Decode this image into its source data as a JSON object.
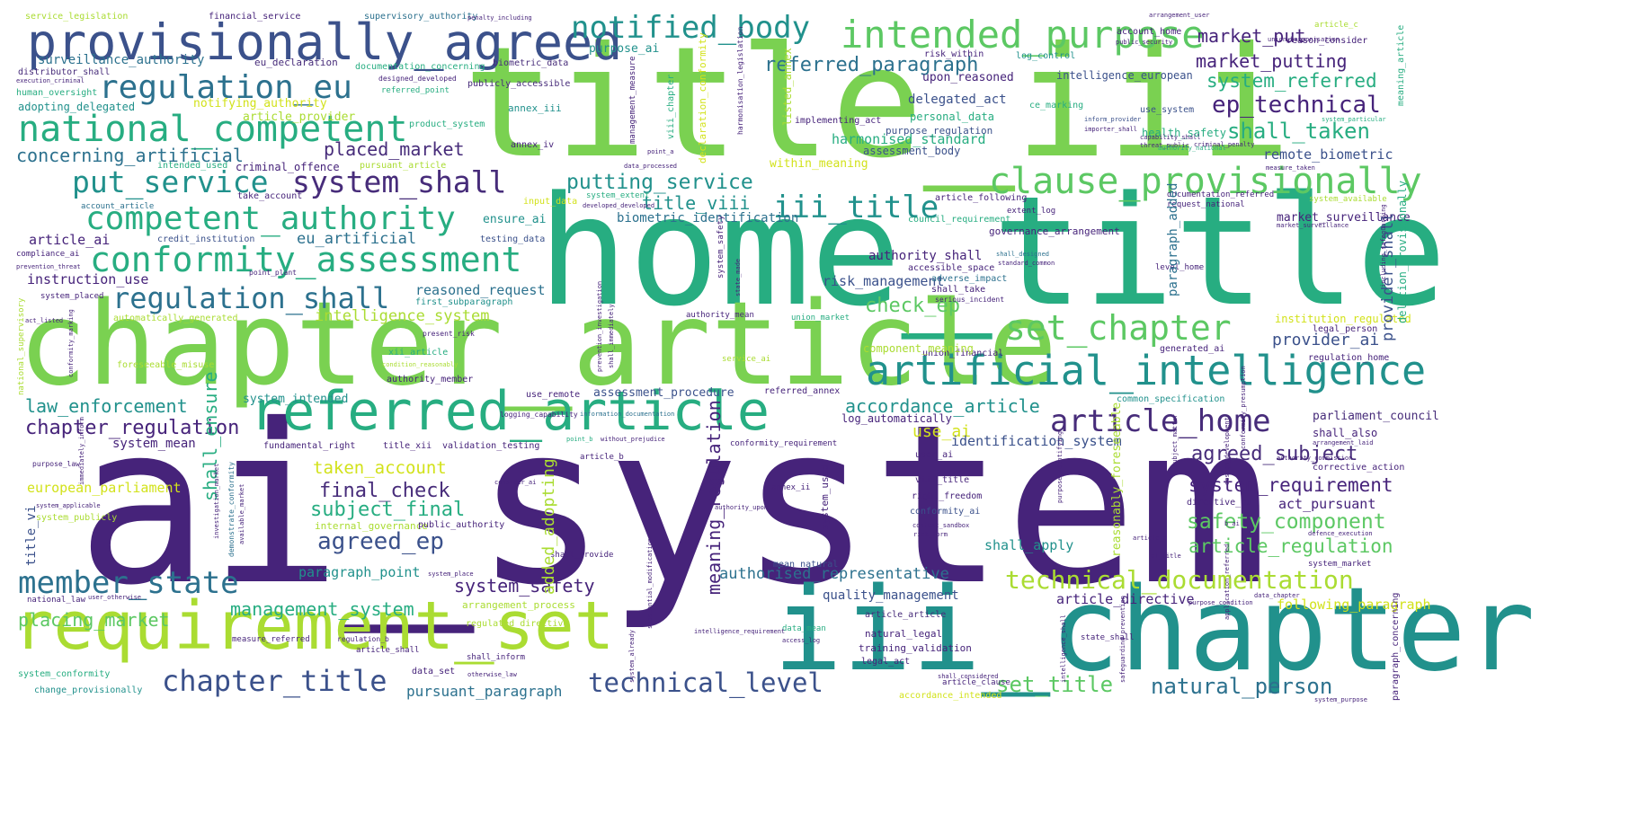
{
  "words": {
    "ai_system": "ai_system",
    "home_title": "home_title",
    "title_iii": "title_iii",
    "chapter_article": "chapter_article",
    "iii_chapter": "iii_chapter",
    "requirement_set": "requirement_set",
    "referred_article": "referred_article",
    "provisionally_agreed": "provisionally_agreed",
    "artificial_intelligence": "artificial_intelligence",
    "intended_purpose": "intended_purpose",
    "national_competent": "national_competent",
    "clause_provisionally": "clause_provisionally",
    "conformity_assessment": "conformity_assessment",
    "competent_authority": "competent_authority",
    "regulation_eu": "regulation_eu",
    "notified_body": "notified_body",
    "system_shall": "system_shall",
    "put_service": "put_service",
    "regulation_shall": "regulation_shall",
    "iii_title": "iii_title",
    "set_chapter": "set_chapter",
    "article_home": "article_home",
    "member_state": "member_state",
    "chapter_title": "chapter_title",
    "technical_documentation": "technical_documentation",
    "technical_level": "technical_level",
    "ep_technical": "ep_technical",
    "market_put": "market_put",
    "market_putting": "market_putting",
    "system_referred": "system_referred",
    "shall_taken": "shall_taken",
    "referred_paragraph": "referred_paragraph",
    "putting_service": "putting_service",
    "title_viii": "title_viii",
    "placed_market": "placed_market",
    "concerning_artificial": "concerning_artificial",
    "agreed_ep": "agreed_ep",
    "final_check": "final_check",
    "subject_final": "subject_final",
    "system_requirement": "system_requirement",
    "safety_component": "safety_component",
    "agreed_subject": "agreed_subject",
    "article_regulation": "article_regulation",
    "natural_person": "natural_person",
    "set_title": "set_title",
    "chapter_regulation": "chapter_regulation",
    "law_enforcement": "law_enforcement",
    "placing_market": "placing_market",
    "management_system": "management_system",
    "system_safety": "system_safety",
    "accordance_article": "accordance_article",
    "check_ep": "check_ep",
    "intelligence_system": "intelligence_system",
    "authorised_representative": "authorised_representative",
    "pursuant_paragraph": "pursuant_paragraph",
    "taken_account": "taken_account",
    "eu_artificial": "eu_artificial",
    "article_ai": "article_ai",
    "harmonised_standard": "harmonised_standard",
    "risk_management": "risk_management",
    "provider_ai": "provider_ai",
    "meaning_regulation": "meaning_regulation",
    "biometric_identification": "biometric_identification",
    "use_ai": "use_ai",
    "identification_system": "identification_system",
    "paragraph_point": "paragraph_point",
    "surveillance_authority": "surveillance_authority",
    "reasoned_request": "reasoned_request",
    "instruction_use": "instruction_use",
    "authority_shall": "authority_shall",
    "delegated_act": "delegated_act",
    "remote_biometric": "remote_biometric",
    "market_surveillance": "market_surveillance",
    "shall_apply": "shall_apply",
    "act_pursuant": "act_pursuant",
    "following_paragraph": "following_paragraph",
    "article_directive": "article_directive",
    "quality_management": "quality_management",
    "european_parliament": "european_parliament",
    "shall_ensure": "shall_ensure",
    "system_mean": "system_mean",
    "paragraph_added": "paragraph_added",
    "provider_shall": "provider_shall",
    "adopting_delegated": "adopting_delegated",
    "notifying_authority": "notifying_authority",
    "article_provider": "article_provider",
    "criminal_offence": "criminal_offence",
    "system_intended": "system_intended",
    "assessment_procedure": "assessment_procedure",
    "upon_reasoned": "upon_reasoned",
    "intelligence_european": "intelligence_european",
    "personal_data": "personal_data",
    "health_safety": "health_safety",
    "ensure_ai": "ensure_ai",
    "title_vi": "title_vi",
    "parliament_council": "parliament_council",
    "institution_regulated": "institution_regulated",
    "log_automatically": "log_automatically",
    "service_legislation": "service_legislation",
    "financial_service": "financial_service",
    "supervisory_authority": "supervisory_authority",
    "eu_declaration": "eu_declaration",
    "documentation_concerning": "documentation_concerning",
    "biometric_data": "biometric_data",
    "publicly_accessible": "publicly_accessible",
    "purpose_ai": "purpose_ai",
    "annex_iii": "annex_iii",
    "annex_iv": "annex_iv",
    "referred_point": "referred_point",
    "product_system": "product_system",
    "pursuant_article": "pursuant_article",
    "intended_used": "intended_used",
    "within_meaning": "within_meaning",
    "credit_institution": "credit_institution",
    "testing_data": "testing_data",
    "account_article": "account_article",
    "take_account": "take_account",
    "automatically_generated": "automatically_generated",
    "first_subparagraph": "first_subparagraph",
    "component_meaning": "component_meaning",
    "assessment_body": "assessment_body",
    "purpose_regulation": "purpose_regulation",
    "governance_arrangement": "governance_arrangement",
    "extent_log": "extent_log",
    "system_available": "system_available",
    "documentation_referred": "documentation_referred",
    "article_following": "article_following",
    "internal_governance": "internal_governance",
    "public_authority": "public_authority",
    "fundamental_right": "fundamental_right",
    "validation_testing": "validation_testing",
    "title_xii": "title_xii",
    "conformity_requirement": "conformity_requirement",
    "user_ai": "user_ai",
    "viii_title": "viii_title",
    "right_freedom": "right_freedom",
    "conformity_ai": "conformity_ai",
    "system_used": "system_used",
    "annex_ii": "annex_ii",
    "corrective_action": "corrective_action",
    "directive_eu": "directive_eu",
    "training_validation": "training_validation",
    "natural_legal": "natural_legal",
    "legal_act": "legal_act",
    "mean_natural": "mean_natural",
    "data_set": "data_set",
    "article_shall": "article_shall",
    "regulated_directive": "regulated_directive",
    "arrangement_process": "arrangement_process",
    "change_provisionally": "change_provisionally",
    "system_conformity": "system_conformity",
    "accordance_intended": "accordance_intended",
    "article_article": "article_article",
    "shall_also": "shall_also",
    "common_specification": "common_specification",
    "generated_ai": "generated_ai",
    "regulation_home": "regulation_home",
    "union_market": "union_market",
    "legal_person": "legal_person",
    "adverse_impact": "adverse_impact",
    "accessible_space": "accessible_space",
    "article_c": "article_c",
    "account_home": "account_home",
    "reason_consider": "reason_consider",
    "log_control": "log_control",
    "use_system": "use_system",
    "ce_marking": "ce_marking",
    "risk_within": "risk_within",
    "implementing_act": "implementing_act",
    "human_oversight": "human_oversight",
    "distributor_shall": "distributor_shall",
    "compliance_ai": "compliance_ai",
    "system_placed": "system_placed",
    "national_supervisory": "national_supervisory",
    "foreseeable_misuse": "foreseeable_misuse",
    "authority_member": "authority_member",
    "use_remote": "use_remote",
    "referred_annex": "referred_annex",
    "union_financial": "union_financial",
    "purpose_law": "purpose_law",
    "system_applicable": "system_applicable",
    "system_publicly": "system_publicly",
    "national_law": "national_law",
    "shall_provide": "shall_provide",
    "shall_inform": "shall_inform",
    "measure_referred": "measure_referred",
    "data_mean": "data_mean",
    "article_clause": "article_clause",
    "state_shall": "state_shall",
    "system_purpose": "system_purpose",
    "system_market": "system_market",
    "paragraph_concerning": "paragraph_concerning",
    "meaning_article": "meaning_article",
    "deletion_provisionally": "deletion_provisionally",
    "xii_article": "xii_article",
    "service_ai": "service_ai",
    "added_adopting": "added_adopting",
    "reasonably_foreseeable": "reasonably_foreseeable",
    "serious_incident": "serious_incident",
    "shall_take": "shall_take",
    "council_requirement": "council_requirement",
    "request_national": "request_national",
    "point_a": "point_a",
    "article_b": "article_b",
    "data_processed": "data_processed",
    "input_data": "input_data",
    "system_extent": "system_extent",
    "developed_developed": "developed_developed",
    "designed_developed": "designed_developed",
    "subject_matter": "subject_matter",
    "declaration_conformity": "declaration_conformity",
    "listed_annex": "listed_annex",
    "reason_consider2": "reason_consider",
    "public_security": "public_security",
    "union_harmonisation": "union_harmonisation",
    "arrangement_user": "arrangement_user",
    "penalty_including": "penalty_including",
    "level_home": "level_home",
    "state_made": "state_made",
    "management_measure": "management_measure",
    "viii_chapter": "viii_chapter",
    "intelligence_shall": "intelligence_shall",
    "purpose_identifying": "purpose_identifying",
    "inform_provider": "inform_provider",
    "importer_shall": "importer_shall",
    "capability_shall": "capability_shall",
    "threat_public": "threat_public",
    "authority_national": "authority_national",
    "criminal_penalty": "criminal_penalty",
    "system_particular": "system_particular",
    "measure_taken": "measure_taken",
    "harmonisation_legislation": "harmonisation_legislation",
    "point_plant": "point_plant",
    "procedure_relating": "procedure_relating",
    "system_place": "system_place",
    "access_log": "access_log",
    "shall_considered": "shall_considered",
    "article_a": "article_a",
    "b_ai": "b_ai",
    "ai_title": "ai_title",
    "point_b": "point_b",
    "without_prejudice": "without_prejudice",
    "including_safeguarding": "including_safeguarding",
    "shall_designed": "shall_designed",
    "standard_common": "standard_common",
    "shall_immediately": "shall_immediately",
    "without_delay": "without_delay",
    "logging_capability": "logging_capability",
    "otherwise_law": "otherwise_law",
    "market_title": "market_title",
    "regulation_b": "regulation_b",
    "conformity_marking": "conformity_marking",
    "immediately_inform": "immediately_inform",
    "condition_reasonably": "condition_reasonably",
    "present_risk": "present_risk",
    "authority_mean": "authority_mean",
    "authority_upon": "authority_upon",
    "consider_ai": "consider_ai",
    "authority_commission": "authority_commission",
    "defence_execution": "defence_execution",
    "arrangement_laid": "arrangement_laid",
    "execution_criminal": "execution_criminal",
    "prevention_investigation": "prevention_investigation",
    "prevention_threat": "prevention_threat",
    "act_listed": "act_listed",
    "investigation_detection": "investigation_detection",
    "market_surveillance2": "market_surveillance",
    "intelligence_requirement": "intelligence_requirement",
    "context_sandbox": "context_sandbox",
    "risk_form": "risk_form",
    "data_chapter": "data_chapter",
    "purpose_condition": "purpose_condition",
    "application_referred": "application_referred",
    "system_already": "system_already",
    "substantial_modification": "substantial_modification",
    "user_otherwise": "user_otherwise",
    "demonstrate_conformity": "demonstrate_conformity",
    "investigation_market": "investigation_market",
    "available_market": "available_market",
    "conformity_presumption": "conformity_presumption",
    "safeguarding_prevention": "safeguarding_prevention",
    "information_documentation": "information_documentation",
    "design_development": "design_development"
  },
  "colors": {
    "purple_dark": "#46237a",
    "purple": "#472c7a",
    "indigo": "#3b518b",
    "blue": "#2c718e",
    "teal": "#21918c",
    "green_teal": "#27ad81",
    "green": "#5cc863",
    "lime": "#7ad151",
    "yellow_green": "#aadc32",
    "yellow": "#d2e21b"
  }
}
